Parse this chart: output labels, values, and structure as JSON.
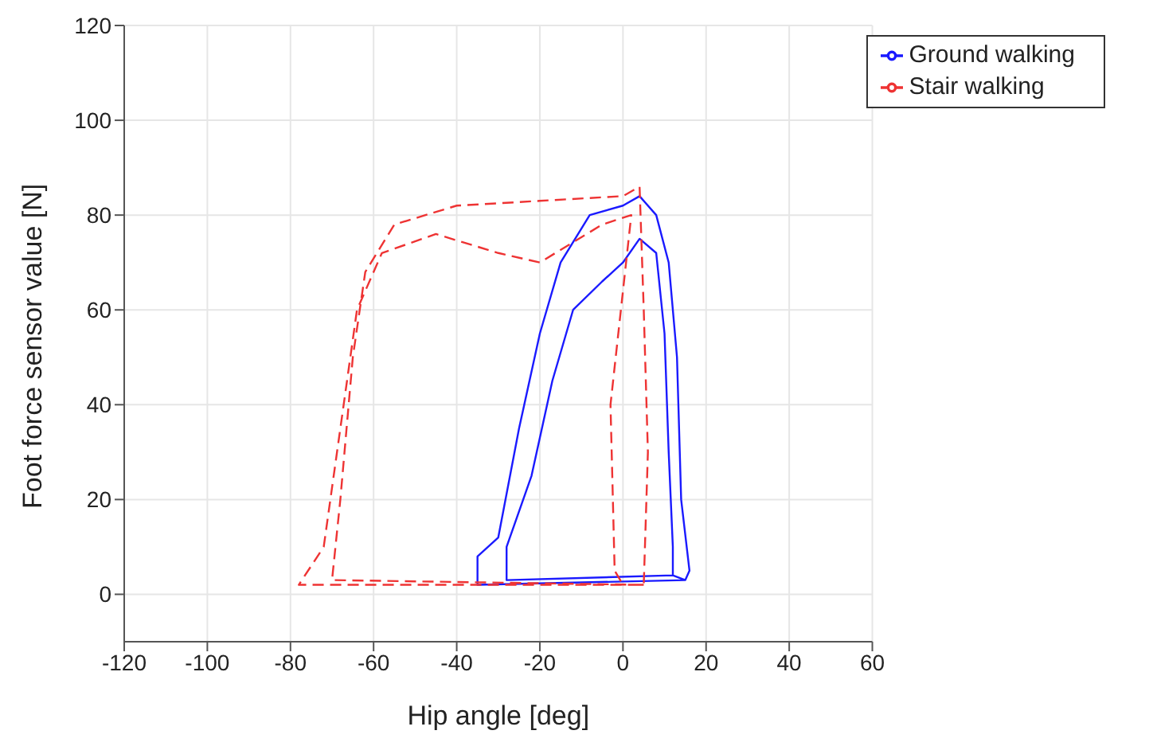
{
  "chart_data": {
    "type": "line",
    "xlabel": "Hip angle [deg]",
    "ylabel": "Foot force sensor value [N]",
    "xlim": [
      -120,
      60
    ],
    "xticks": [
      -120,
      -100,
      -80,
      -60,
      -40,
      -20,
      0,
      20,
      40,
      60
    ],
    "ylim": [
      -10,
      120
    ],
    "yticks": [
      0,
      20,
      40,
      60,
      80,
      100,
      120
    ],
    "grid": true,
    "legend": "top right",
    "marker": "none",
    "series": [
      {
        "name": "Ground walking",
        "color": "#1a1aff",
        "line_style": "solid",
        "x": [
          15,
          -35,
          -35,
          -30,
          -25,
          -20,
          -15,
          -8,
          0,
          4,
          8,
          11,
          13,
          14,
          16,
          15,
          12,
          -28,
          -28,
          -22,
          -17,
          -12,
          -5,
          0,
          4,
          8,
          10,
          11,
          12,
          12
        ],
        "values": [
          3,
          2,
          8,
          12,
          35,
          55,
          70,
          80,
          82,
          84,
          80,
          70,
          50,
          20,
          5,
          3,
          4,
          3,
          10,
          25,
          45,
          60,
          66,
          70,
          75,
          72,
          55,
          30,
          10,
          4
        ]
      },
      {
        "name": "Stair walking",
        "color": "#ee3333",
        "line_style": "dashed",
        "x": [
          5,
          -70,
          -68,
          -65,
          -62,
          -55,
          -40,
          -20,
          0,
          4,
          5,
          6,
          5,
          0,
          -78,
          -72,
          -68,
          -64,
          -58,
          -45,
          -30,
          -20,
          -5,
          2,
          -3,
          -2,
          0
        ],
        "values": [
          2,
          3,
          20,
          50,
          68,
          78,
          82,
          83,
          84,
          86,
          60,
          30,
          2,
          2,
          2,
          10,
          35,
          60,
          72,
          76,
          72,
          70,
          78,
          80,
          40,
          5,
          2
        ]
      }
    ]
  }
}
